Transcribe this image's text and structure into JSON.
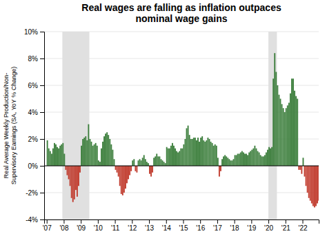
{
  "chart_data": {
    "type": "bar",
    "title": "Real wages are falling as inflation outpaces\nnominal wage gains",
    "ylabel": "Real Average Weekly Production/Non-\nSupervisory Earnings (SA, YoY % Change)",
    "xlim": [
      2006.85,
      2022.95
    ],
    "xticks": [
      {
        "value": 2007,
        "label": "'07"
      },
      {
        "value": 2008,
        "label": "'08"
      },
      {
        "value": 2009,
        "label": "'09"
      },
      {
        "value": 2010,
        "label": "'10"
      },
      {
        "value": 2011,
        "label": "'11"
      },
      {
        "value": 2012,
        "label": "'12"
      },
      {
        "value": 2013,
        "label": "'13"
      },
      {
        "value": 2014,
        "label": "'14"
      },
      {
        "value": 2015,
        "label": "'15"
      },
      {
        "value": 2016,
        "label": "'16"
      },
      {
        "value": 2017,
        "label": "'17"
      },
      {
        "value": 2018,
        "label": "'18"
      },
      {
        "value": 2019,
        "label": "'19"
      },
      {
        "value": 2020,
        "label": "'20"
      },
      {
        "value": 2021,
        "label": "'21"
      },
      {
        "value": 2022,
        "label": "'22"
      }
    ],
    "ylim": [
      -4,
      10
    ],
    "yticks": [
      {
        "value": -4,
        "label": "-4%"
      },
      {
        "value": -2,
        "label": "-2%"
      },
      {
        "value": 0,
        "label": "0%"
      },
      {
        "value": 2,
        "label": "2%"
      },
      {
        "value": 4,
        "label": "4%"
      },
      {
        "value": 6,
        "label": "6%"
      },
      {
        "value": 8,
        "label": "8%"
      },
      {
        "value": 10,
        "label": "10%"
      }
    ],
    "grid": true,
    "hline": 0,
    "shaded_regions": [
      {
        "start": 2007.917,
        "end": 2009.5,
        "color": "#e0e0e0"
      },
      {
        "start": 2020.0,
        "end": 2020.5,
        "color": "#e0e0e0"
      }
    ],
    "x": [
      2007,
      2007.0833333333333,
      2007.1666666666667,
      2007.25,
      2007.3333333333333,
      2007.4166666666667,
      2007.5,
      2007.5833333333333,
      2007.6666666666667,
      2007.75,
      2007.8333333333333,
      2007.9166666666667,
      2008,
      2008.0833333333333,
      2008.1666666666667,
      2008.25,
      2008.3333333333333,
      2008.4166666666667,
      2008.5,
      2008.5833333333333,
      2008.6666666666667,
      2008.75,
      2008.8333333333333,
      2008.9166666666667,
      2009,
      2009.0833333333333,
      2009.1666666666667,
      2009.25,
      2009.3333333333333,
      2009.4166666666667,
      2009.5,
      2009.5833333333333,
      2009.6666666666667,
      2009.75,
      2009.8333333333333,
      2009.9166666666667,
      2010,
      2010.0833333333333,
      2010.1666666666667,
      2010.25,
      2010.3333333333333,
      2010.4166666666667,
      2010.5,
      2010.5833333333333,
      2010.6666666666667,
      2010.75,
      2010.8333333333333,
      2010.9166666666667,
      2011,
      2011.0833333333333,
      2011.1666666666667,
      2011.25,
      2011.3333333333333,
      2011.4166666666667,
      2011.5,
      2011.5833333333333,
      2011.6666666666667,
      2011.75,
      2011.8333333333333,
      2011.9166666666667,
      2012,
      2012.0833333333333,
      2012.1666666666667,
      2012.25,
      2012.3333333333333,
      2012.4166666666667,
      2012.5,
      2012.5833333333333,
      2012.6666666666667,
      2012.75,
      2012.8333333333333,
      2012.9166666666667,
      2013,
      2013.0833333333333,
      2013.1666666666667,
      2013.25,
      2013.3333333333333,
      2013.4166666666667,
      2013.5,
      2013.5833333333333,
      2013.6666666666667,
      2013.75,
      2013.8333333333333,
      2013.9166666666667,
      2014,
      2014.0833333333333,
      2014.1666666666667,
      2014.25,
      2014.3333333333333,
      2014.4166666666667,
      2014.5,
      2014.5833333333333,
      2014.6666666666667,
      2014.75,
      2014.8333333333333,
      2014.9166666666667,
      2015,
      2015.0833333333333,
      2015.1666666666667,
      2015.25,
      2015.3333333333333,
      2015.4166666666667,
      2015.5,
      2015.5833333333333,
      2015.6666666666667,
      2015.75,
      2015.8333333333333,
      2015.9166666666667,
      2016,
      2016.0833333333333,
      2016.1666666666667,
      2016.25,
      2016.3333333333333,
      2016.4166666666667,
      2016.5,
      2016.5833333333333,
      2016.6666666666667,
      2016.75,
      2016.8333333333333,
      2016.9166666666667,
      2017,
      2017.0833333333333,
      2017.1666666666667,
      2017.25,
      2017.3333333333333,
      2017.4166666666667,
      2017.5,
      2017.5833333333333,
      2017.6666666666667,
      2017.75,
      2017.8333333333333,
      2017.9166666666667,
      2018,
      2018.0833333333333,
      2018.1666666666667,
      2018.25,
      2018.3333333333333,
      2018.4166666666667,
      2018.5,
      2018.5833333333333,
      2018.6666666666667,
      2018.75,
      2018.8333333333333,
      2018.9166666666667,
      2019,
      2019.0833333333333,
      2019.1666666666667,
      2019.25,
      2019.3333333333333,
      2019.4166666666667,
      2019.5,
      2019.5833333333333,
      2019.6666666666667,
      2019.75,
      2019.8333333333333,
      2019.9166666666667,
      2020,
      2020.0833333333333,
      2020.1666666666667,
      2020.25,
      2020.3333333333333,
      2020.4166666666667,
      2020.5,
      2020.5833333333333,
      2020.6666666666667,
      2020.75,
      2020.8333333333333,
      2020.9166666666667,
      2021,
      2021.0833333333333,
      2021.1666666666667,
      2021.25,
      2021.3333333333333,
      2021.4166666666667,
      2021.5,
      2021.5833333333333,
      2021.6666666666667,
      2021.75,
      2021.8333333333333,
      2021.9166666666667,
      2022,
      2022.0833333333333,
      2022.1666666666667,
      2022.25,
      2022.3333333333333,
      2022.4166666666667,
      2022.5,
      2022.5833333333333,
      2022.6666666666667,
      2022.75,
      2022.8333333333333,
      2022.9166666666667
    ],
    "values": [
      1.9,
      1.3,
      1.1,
      0.9,
      1.3,
      1.7,
      1.6,
      1.4,
      1.3,
      1.5,
      1.6,
      1.7,
      0.9,
      -0.3,
      -0.7,
      -1.0,
      -1.5,
      -2.4,
      -2.7,
      -2.5,
      -1.8,
      -2.3,
      -1.5,
      -0.5,
      1.5,
      2.0,
      2.1,
      2.2,
      1.9,
      3.1,
      2.0,
      1.8,
      1.5,
      1.6,
      1.7,
      1.5,
      0.4,
      0.3,
      1.3,
      1.8,
      2.2,
      2.4,
      2.5,
      2.3,
      2.0,
      1.6,
      1.2,
      0.5,
      -0.3,
      -0.5,
      -0.8,
      -1.5,
      -2.1,
      -2.2,
      -2.0,
      -1.7,
      -1.3,
      -1.0,
      -0.7,
      -0.4,
      0.4,
      0.5,
      -0.4,
      -0.5,
      0.4,
      0.5,
      0.4,
      0.6,
      0.8,
      0.5,
      0.3,
      0.2,
      -0.6,
      -0.8,
      -0.5,
      0.6,
      0.7,
      0.9,
      0.7,
      0.7,
      0.5,
      0.4,
      0.3,
      0.2,
      1.4,
      1.3,
      1.3,
      1.5,
      1.7,
      1.5,
      1.3,
      1.1,
      1.0,
      1.1,
      1.3,
      1.3,
      1.6,
      2.0,
      2.8,
      3.0,
      2.3,
      2.0,
      2.0,
      2.1,
      2.1,
      1.9,
      2.1,
      1.8,
      2.1,
      2.2,
      1.9,
      1.8,
      1.9,
      2.1,
      2.0,
      1.8,
      1.7,
      1.5,
      1.6,
      1.5,
      0.6,
      -0.8,
      -0.4,
      0.5,
      0.7,
      0.8,
      0.7,
      0.6,
      0.5,
      0.4,
      0.4,
      0.5,
      0.8,
      0.8,
      0.9,
      0.9,
      1.0,
      1.1,
      1.0,
      0.9,
      0.9,
      0.8,
      1.0,
      1.1,
      1.2,
      1.3,
      1.5,
      1.3,
      1.1,
      1.0,
      0.8,
      0.7,
      0.7,
      0.8,
      1.0,
      1.2,
      1.4,
      1.3,
      1.4,
      6.5,
      8.4,
      7.0,
      6.0,
      5.3,
      5.0,
      4.6,
      4.3,
      4.0,
      4.3,
      4.5,
      4.7,
      5.4,
      6.5,
      6.5,
      5.6,
      5.2,
      5.0,
      -0.3,
      -0.3,
      -0.6,
      0.6,
      -0.8,
      -1.5,
      -2.0,
      -2.4,
      -2.6,
      -2.8,
      -3.0,
      -3.1,
      -3.0,
      -2.8,
      -2.6
    ],
    "colors": [
      "#3a7d3a",
      "#3a7d3a",
      "#3a7d3a",
      "#3a7d3a",
      "#3a7d3a",
      "#3a7d3a",
      "#3a7d3a",
      "#3a7d3a",
      "#3a7d3a",
      "#3a7d3a",
      "#3a7d3a",
      "#3a7d3a",
      "#3a7d3a",
      "#c0392b",
      "#c0392b",
      "#c0392b",
      "#c0392b",
      "#c0392b",
      "#c0392b",
      "#c0392b",
      "#c0392b",
      "#c0392b",
      "#c0392b",
      "#c0392b",
      "#3a7d3a",
      "#3a7d3a",
      "#3a7d3a",
      "#3a7d3a",
      "#3a7d3a",
      "#3a7d3a",
      "#3a7d3a",
      "#3a7d3a",
      "#3a7d3a",
      "#3a7d3a",
      "#3a7d3a",
      "#3a7d3a",
      "#3a7d3a",
      "#3a7d3a",
      "#3a7d3a",
      "#3a7d3a",
      "#3a7d3a",
      "#3a7d3a",
      "#3a7d3a",
      "#3a7d3a",
      "#3a7d3a",
      "#3a7d3a",
      "#3a7d3a",
      "#3a7d3a",
      "#c0392b",
      "#c0392b",
      "#c0392b",
      "#c0392b",
      "#c0392b",
      "#c0392b",
      "#c0392b",
      "#c0392b",
      "#c0392b",
      "#c0392b",
      "#c0392b",
      "#c0392b",
      "#3a7d3a",
      "#3a7d3a",
      "#c0392b",
      "#c0392b",
      "#3a7d3a",
      "#3a7d3a",
      "#3a7d3a",
      "#3a7d3a",
      "#3a7d3a",
      "#3a7d3a",
      "#3a7d3a",
      "#3a7d3a",
      "#c0392b",
      "#c0392b",
      "#c0392b",
      "#3a7d3a",
      "#3a7d3a",
      "#3a7d3a",
      "#3a7d3a",
      "#3a7d3a",
      "#3a7d3a",
      "#3a7d3a",
      "#3a7d3a",
      "#3a7d3a",
      "#3a7d3a",
      "#3a7d3a",
      "#3a7d3a",
      "#3a7d3a",
      "#3a7d3a",
      "#3a7d3a",
      "#3a7d3a",
      "#3a7d3a",
      "#3a7d3a",
      "#3a7d3a",
      "#3a7d3a",
      "#3a7d3a",
      "#3a7d3a",
      "#3a7d3a",
      "#3a7d3a",
      "#3a7d3a",
      "#3a7d3a",
      "#3a7d3a",
      "#3a7d3a",
      "#3a7d3a",
      "#3a7d3a",
      "#3a7d3a",
      "#3a7d3a",
      "#3a7d3a",
      "#3a7d3a",
      "#3a7d3a",
      "#3a7d3a",
      "#3a7d3a",
      "#3a7d3a",
      "#3a7d3a",
      "#3a7d3a",
      "#3a7d3a",
      "#3a7d3a",
      "#3a7d3a",
      "#3a7d3a",
      "#3a7d3a",
      "#3a7d3a",
      "#c0392b",
      "#c0392b",
      "#3a7d3a",
      "#3a7d3a",
      "#3a7d3a",
      "#3a7d3a",
      "#3a7d3a",
      "#3a7d3a",
      "#3a7d3a",
      "#3a7d3a",
      "#3a7d3a",
      "#3a7d3a",
      "#3a7d3a",
      "#3a7d3a",
      "#3a7d3a",
      "#3a7d3a",
      "#3a7d3a",
      "#3a7d3a",
      "#3a7d3a",
      "#3a7d3a",
      "#3a7d3a",
      "#3a7d3a",
      "#3a7d3a",
      "#3a7d3a",
      "#3a7d3a",
      "#3a7d3a",
      "#3a7d3a",
      "#3a7d3a",
      "#3a7d3a",
      "#3a7d3a",
      "#3a7d3a",
      "#3a7d3a",
      "#3a7d3a",
      "#3a7d3a",
      "#3a7d3a",
      "#3a7d3a",
      "#3a7d3a",
      "#3a7d3a",
      "#3a7d3a",
      "#3a7d3a",
      "#3a7d3a",
      "#3a7d3a",
      "#3a7d3a",
      "#3a7d3a",
      "#3a7d3a",
      "#3a7d3a",
      "#3a7d3a",
      "#3a7d3a",
      "#3a7d3a",
      "#3a7d3a",
      "#3a7d3a",
      "#3a7d3a",
      "#3a7d3a",
      "#3a7d3a",
      "#3a7d3a",
      "#3a7d3a",
      "#c0392b",
      "#c0392b",
      "#c0392b",
      "#3a7d3a",
      "#c0392b",
      "#c0392b",
      "#c0392b",
      "#c0392b",
      "#c0392b",
      "#c0392b",
      "#c0392b",
      "#c0392b",
      "#c0392b",
      "#c0392b",
      "#c0392b"
    ]
  }
}
